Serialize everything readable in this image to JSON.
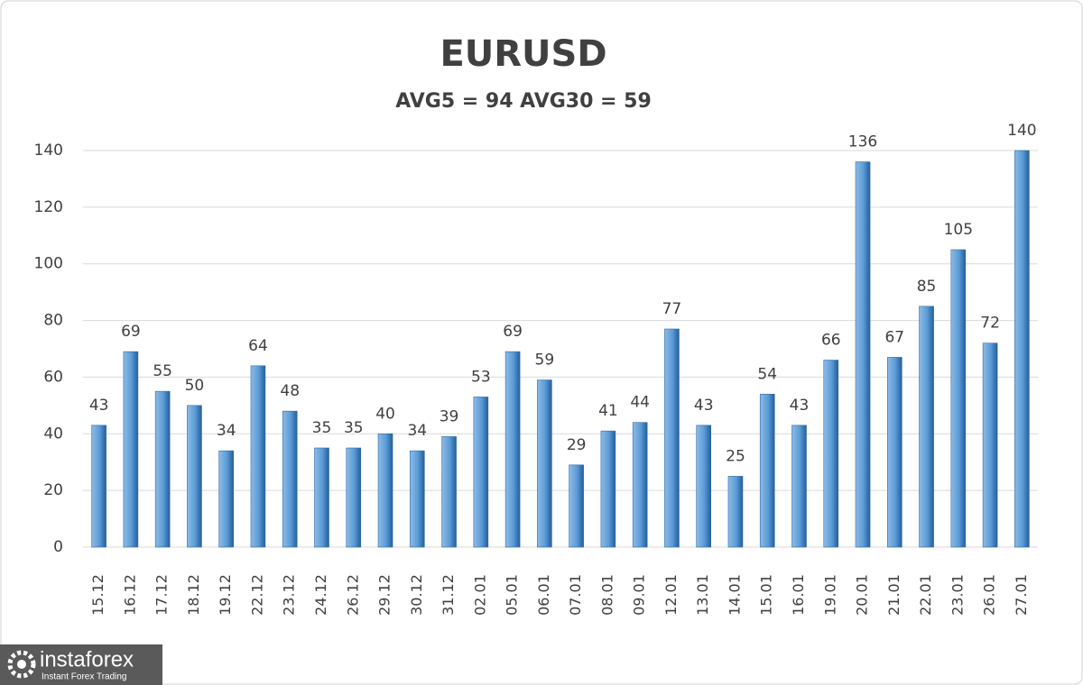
{
  "chart_data": {
    "type": "bar",
    "title": "EURUSD",
    "subtitle": "AVG5 = 94 AVG30 = 59",
    "categories": [
      "15.12",
      "16.12",
      "17.12",
      "18.12",
      "19.12",
      "22.12",
      "23.12",
      "24.12",
      "26.12",
      "29.12",
      "30.12",
      "31.12",
      "02.01",
      "05.01",
      "06.01",
      "07.01",
      "08.01",
      "09.01",
      "12.01",
      "13.01",
      "14.01",
      "15.01",
      "16.01",
      "19.01",
      "20.01",
      "21.01",
      "22.01",
      "23.01",
      "26.01",
      "27.01"
    ],
    "values": [
      43,
      69,
      55,
      50,
      34,
      64,
      48,
      35,
      35,
      40,
      34,
      39,
      53,
      69,
      59,
      29,
      41,
      44,
      77,
      43,
      25,
      54,
      43,
      66,
      136,
      67,
      85,
      105,
      72,
      140
    ],
    "color": "#5b9bd5",
    "ylim": [
      0,
      140
    ],
    "yticks": [
      0,
      20,
      40,
      60,
      80,
      100,
      120,
      140
    ],
    "grid": true
  },
  "logo": {
    "brand": "instaforex",
    "tagline": "Instant Forex Trading"
  }
}
